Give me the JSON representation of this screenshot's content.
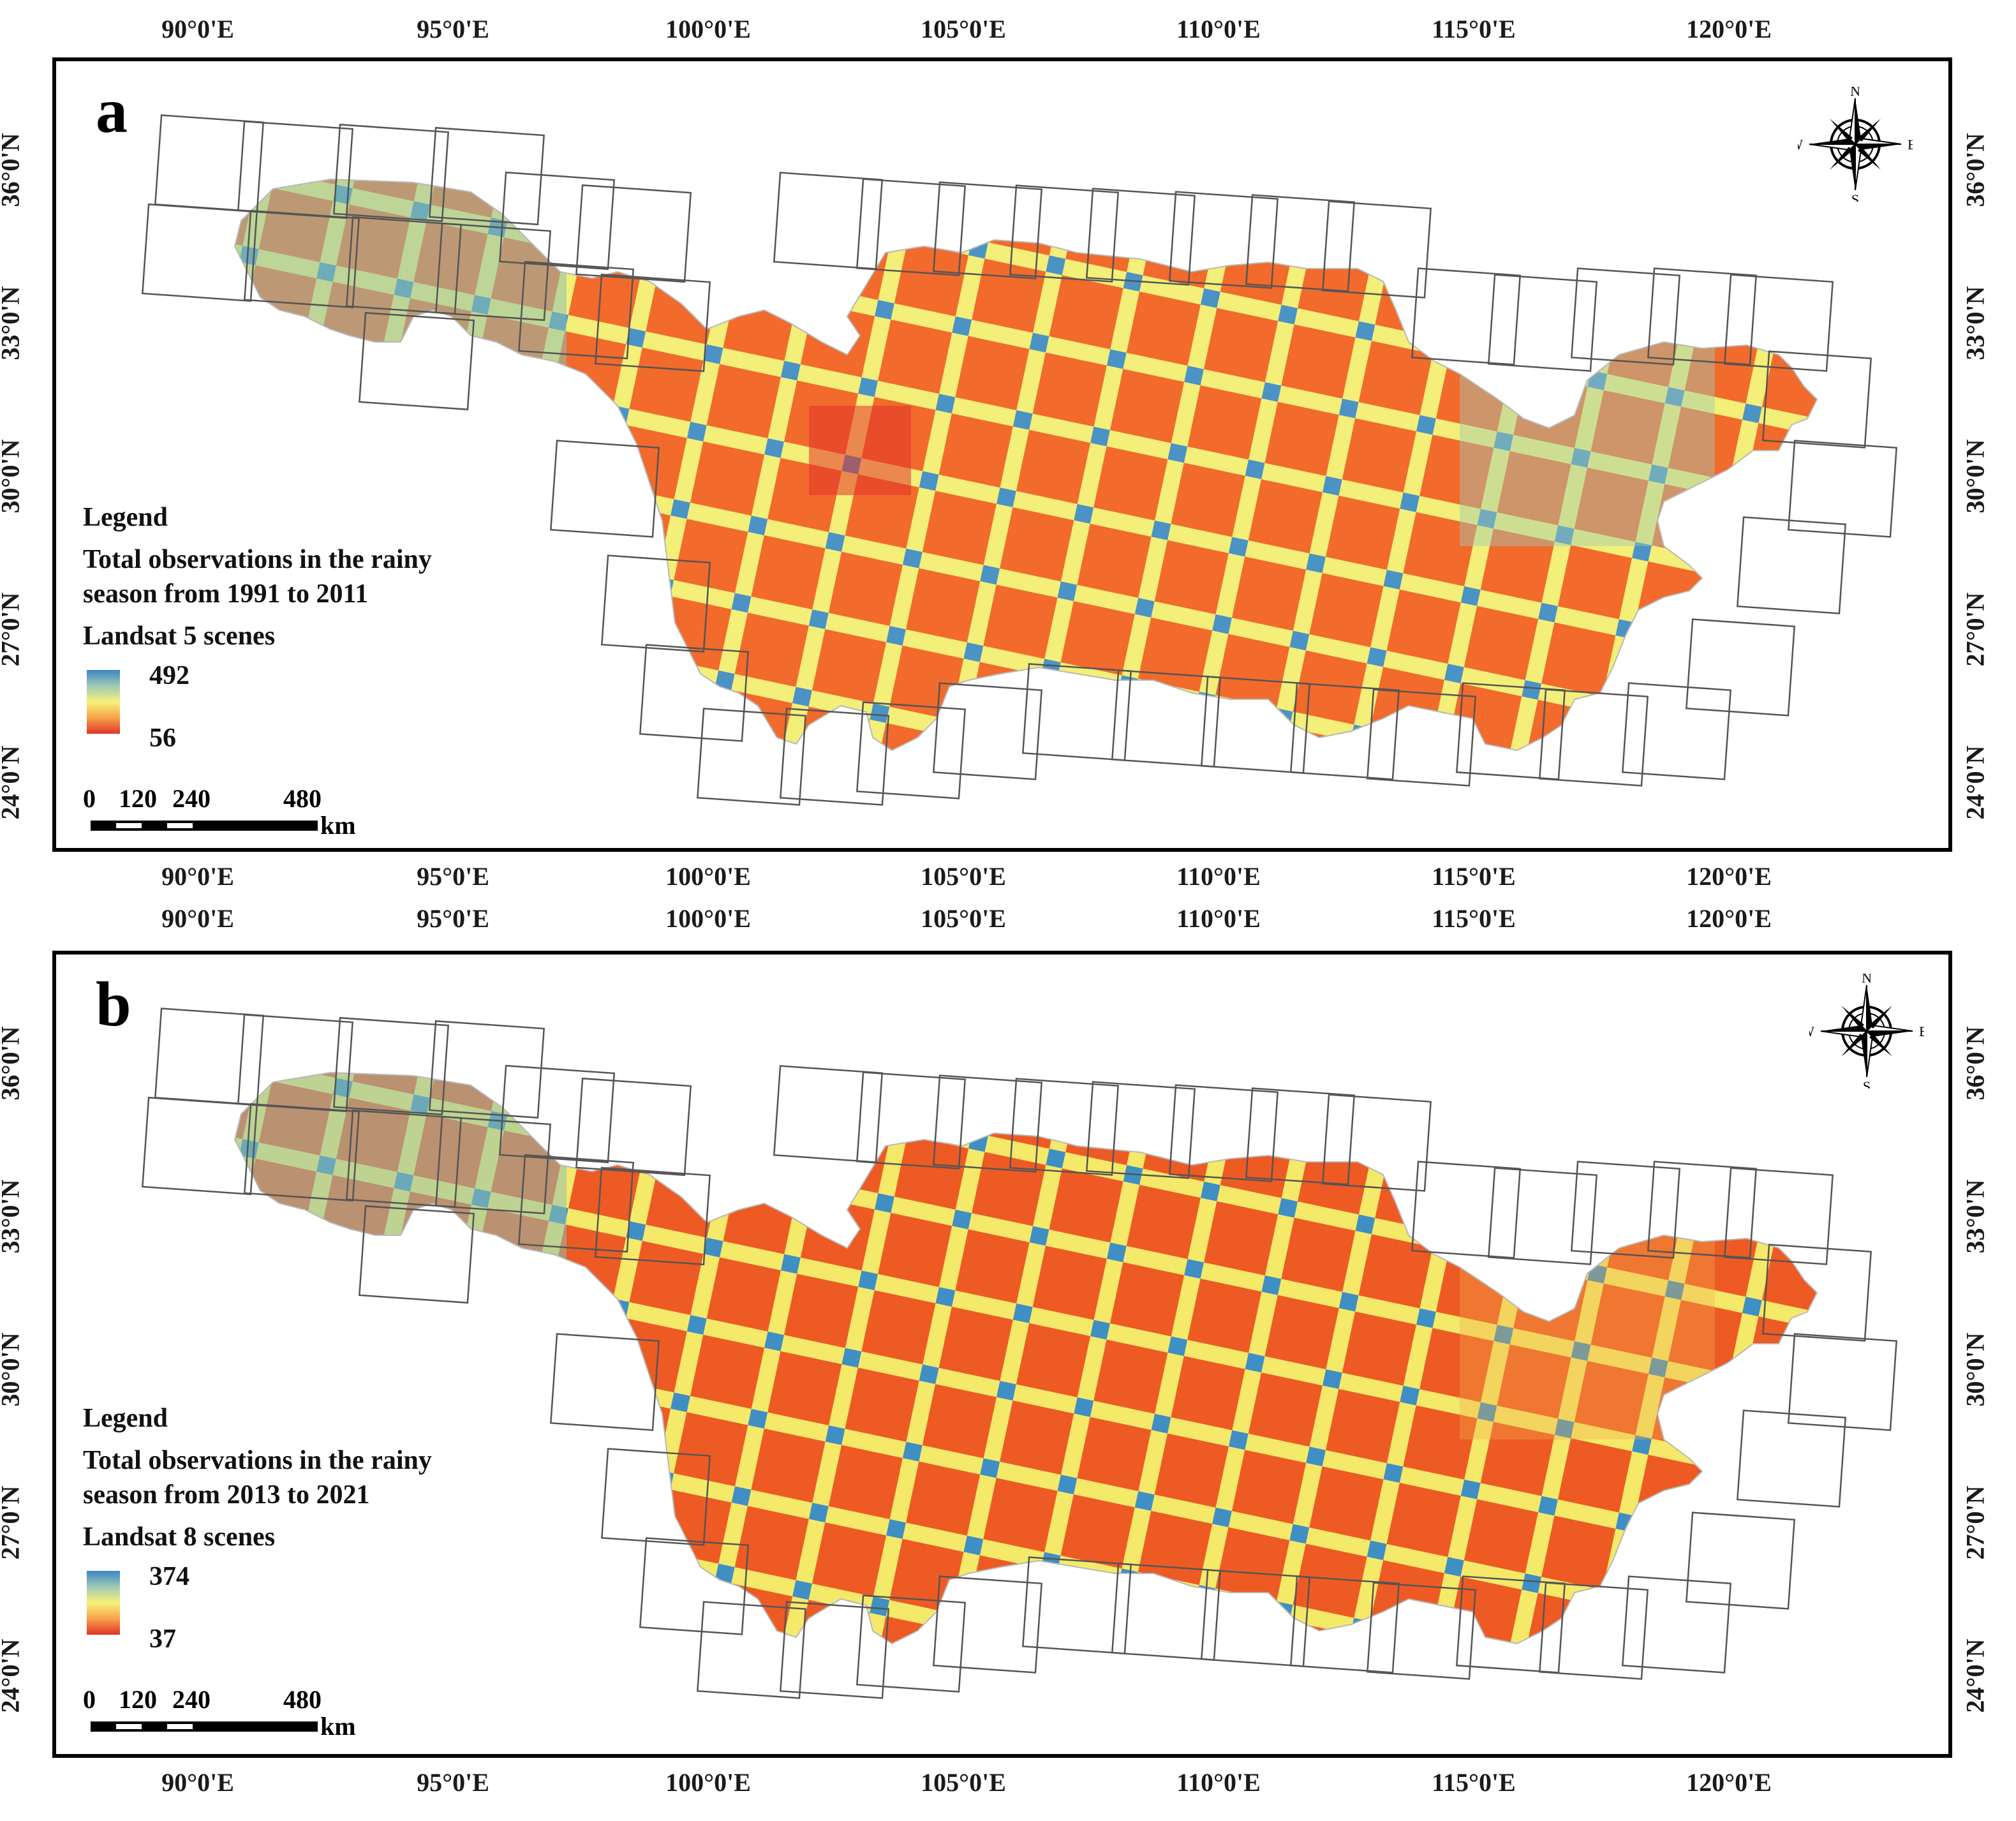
{
  "panels": [
    {
      "id": "a",
      "letter": "a",
      "legend": {
        "heading": "Legend",
        "title_line1": "Total observations in the rainy",
        "title_line2": "season from 1991 to 2011",
        "subtitle": "Landsat 5 scenes",
        "max": "492",
        "min": "56"
      }
    },
    {
      "id": "b",
      "letter": "b",
      "legend": {
        "heading": "Legend",
        "title_line1": "Total observations in the rainy",
        "title_line2": "season from 2013 to 2021",
        "subtitle": "Landsat 8 scenes",
        "max": "374",
        "min": "37"
      }
    }
  ],
  "axes": {
    "longitude_labels": [
      "90°0'E",
      "95°0'E",
      "100°0'E",
      "105°0'E",
      "110°0'E",
      "115°0'E",
      "120°0'E"
    ],
    "latitude_labels": [
      "36°0'N",
      "33°0'N",
      "30°0'N",
      "27°0'N",
      "24°0'N"
    ]
  },
  "scale_bar": {
    "labels": [
      "0",
      "120",
      "240",
      "480"
    ],
    "unit": "km"
  },
  "compass": {
    "n": "N",
    "s": "S",
    "e": "E",
    "w": "W"
  },
  "colors": {
    "high": "#3a86c4",
    "mid_high": "#9fc9b4",
    "mid": "#f6f27a",
    "mid_low": "#f6a24a",
    "low": "#e2332a",
    "footprint": "#555555"
  }
}
